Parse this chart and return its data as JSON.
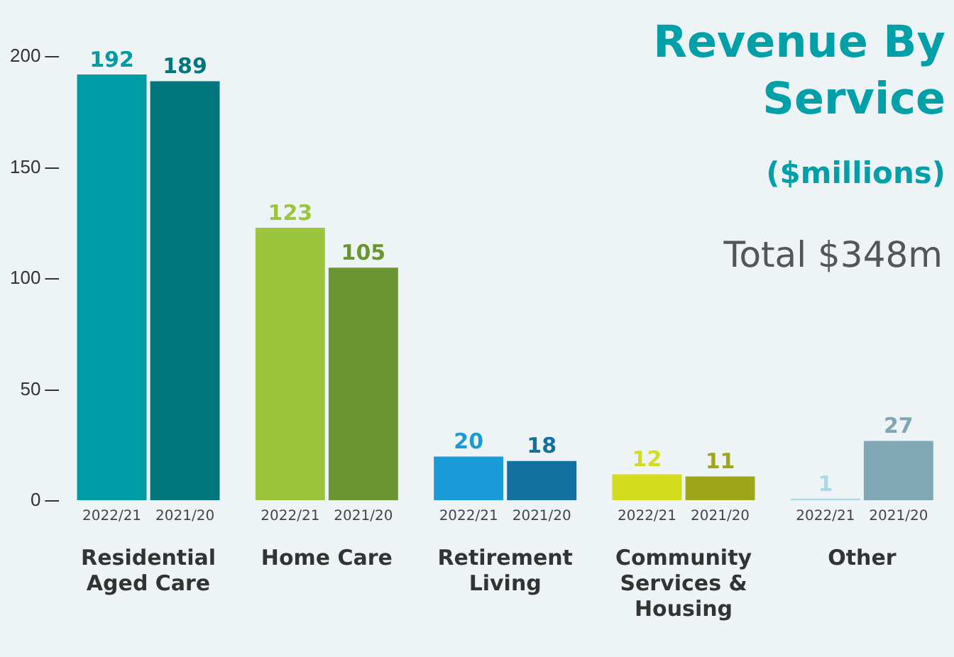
{
  "chart_data": {
    "type": "bar",
    "title": "Revenue By Service",
    "subtitle": "($millions)",
    "annotations": [
      "Total $348m"
    ],
    "categories": [
      "Residential Aged Care",
      "Home Care",
      "Retirement Living",
      "Community Services & Housing",
      "Other"
    ],
    "series": [
      {
        "name": "2022/21",
        "values": [
          192,
          123,
          20,
          12,
          1
        ],
        "colors": [
          "#009ca6",
          "#9bc53d",
          "#1a9ad6",
          "#d4dc1f",
          "#a9d8e8"
        ]
      },
      {
        "name": "2021/20",
        "values": [
          189,
          105,
          18,
          11,
          27
        ],
        "colors": [
          "#00767d",
          "#6b9530",
          "#1470a0",
          "#a0a61a",
          "#7fa7b5"
        ]
      }
    ],
    "ylim": [
      0,
      200
    ],
    "yticks": [
      0,
      50,
      100,
      150,
      200
    ],
    "data_labels": true,
    "grid": false,
    "legend": false
  }
}
